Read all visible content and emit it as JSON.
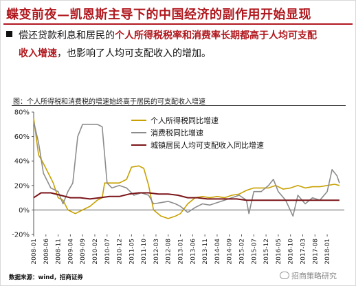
{
  "slide": {
    "title": "蝶变前夜—凯恩斯主导下的中国经济的副作用开始显现",
    "bullet_line1_plain": "偿还贷款利息和居民的",
    "bullet_line1_highlight": "个人所得税税率和消费率长期都高于人均可支配",
    "bullet_line2_highlight": "收入增速",
    "bullet_line2_plain": "，也影响了人均可支配收入的增加。",
    "chart_caption": "图：个人所得税和消费税的增速始终高于居民的可支配收入增速",
    "source": "数据来源：wind，招商证券",
    "watermark": "招商策略研究"
  },
  "colors": {
    "title": "#b0181e",
    "income_tax": "#c8a000",
    "consumption_tax": "#8c8c8c",
    "disposable_income": "#7a1418"
  },
  "chart_data": {
    "type": "line",
    "title": "图：个人所得税和消费税的增速始终高于居民的可支配收入增速",
    "xlabel": "",
    "ylabel": "",
    "ylim": [
      -20,
      80
    ],
    "yticks": [
      "80%",
      "60%",
      "40%",
      "20%",
      "0%",
      "-20%"
    ],
    "ytick_values": [
      80,
      60,
      40,
      20,
      0,
      -20
    ],
    "grid": false,
    "legend_position": "top-right",
    "x_labels": [
      "2008-01",
      "2008-06",
      "2008-11",
      "2009-04",
      "2009-09",
      "2010-02",
      "2010-07",
      "2010-12",
      "2011-05",
      "2011-10",
      "2012-03",
      "2012-08",
      "2013-01",
      "2013-06",
      "2013-11",
      "2014-04",
      "2014-09",
      "2015-02",
      "2015-07",
      "2015-12",
      "2016-05",
      "2016-10",
      "2017-03",
      "2017-08",
      "2018-01"
    ],
    "series": [
      {
        "name": "个人所得税同比增速",
        "color_key": "income_tax",
        "points": [
          [
            "2008-01",
            75
          ],
          [
            "2008-03",
            45
          ],
          [
            "2008-05",
            38
          ],
          [
            "2008-07",
            30
          ],
          [
            "2008-09",
            22
          ],
          [
            "2008-11",
            10
          ],
          [
            "2009-01",
            8
          ],
          [
            "2009-03",
            0
          ],
          [
            "2009-06",
            -3
          ],
          [
            "2009-09",
            0
          ],
          [
            "2009-12",
            3
          ],
          [
            "2010-03",
            8
          ],
          [
            "2010-05",
            10
          ],
          [
            "2010-06",
            22
          ],
          [
            "2010-09",
            22
          ],
          [
            "2010-12",
            22
          ],
          [
            "2011-03",
            25
          ],
          [
            "2011-05",
            35
          ],
          [
            "2011-08",
            36
          ],
          [
            "2011-10",
            34
          ],
          [
            "2011-12",
            20
          ],
          [
            "2012-02",
            0
          ],
          [
            "2012-05",
            -5
          ],
          [
            "2012-08",
            -7
          ],
          [
            "2012-11",
            -5
          ],
          [
            "2013-01",
            -3
          ],
          [
            "2013-04",
            5
          ],
          [
            "2013-07",
            10
          ],
          [
            "2013-10",
            11
          ],
          [
            "2014-01",
            10
          ],
          [
            "2014-04",
            11
          ],
          [
            "2014-07",
            10
          ],
          [
            "2014-10",
            12
          ],
          [
            "2015-01",
            13
          ],
          [
            "2015-04",
            16
          ],
          [
            "2015-07",
            18
          ],
          [
            "2015-10",
            18
          ],
          [
            "2016-01",
            18
          ],
          [
            "2016-04",
            20
          ],
          [
            "2016-07",
            17
          ],
          [
            "2016-10",
            18
          ],
          [
            "2017-01",
            20
          ],
          [
            "2017-04",
            18
          ],
          [
            "2017-07",
            19
          ],
          [
            "2017-10",
            19
          ],
          [
            "2018-01",
            20
          ],
          [
            "2018-04",
            21
          ],
          [
            "2018-06",
            20
          ]
        ]
      },
      {
        "name": "消费税同比增速",
        "color_key": "consumption_tax",
        "points": [
          [
            "2008-01",
            72
          ],
          [
            "2008-03",
            55
          ],
          [
            "2008-05",
            30
          ],
          [
            "2008-08",
            18
          ],
          [
            "2008-11",
            15
          ],
          [
            "2009-01",
            5
          ],
          [
            "2009-03",
            15
          ],
          [
            "2009-05",
            22
          ],
          [
            "2009-07",
            60
          ],
          [
            "2009-09",
            70
          ],
          [
            "2009-12",
            70
          ],
          [
            "2010-03",
            70
          ],
          [
            "2010-05",
            68
          ],
          [
            "2010-07",
            22
          ],
          [
            "2010-09",
            18
          ],
          [
            "2010-12",
            20
          ],
          [
            "2011-03",
            18
          ],
          [
            "2011-06",
            12
          ],
          [
            "2011-09",
            14
          ],
          [
            "2011-12",
            12
          ],
          [
            "2012-02",
            5
          ],
          [
            "2012-05",
            6
          ],
          [
            "2012-08",
            7
          ],
          [
            "2012-11",
            5
          ],
          [
            "2013-01",
            3
          ],
          [
            "2013-04",
            -2
          ],
          [
            "2013-07",
            2
          ],
          [
            "2013-10",
            5
          ],
          [
            "2014-01",
            4
          ],
          [
            "2014-04",
            6
          ],
          [
            "2014-07",
            8
          ],
          [
            "2014-10",
            10
          ],
          [
            "2015-01",
            12
          ],
          [
            "2015-04",
            8
          ],
          [
            "2015-05",
            -3
          ],
          [
            "2015-07",
            15
          ],
          [
            "2015-10",
            15
          ],
          [
            "2016-01",
            20
          ],
          [
            "2016-03",
            25
          ],
          [
            "2016-05",
            15
          ],
          [
            "2016-08",
            8
          ],
          [
            "2016-11",
            -5
          ],
          [
            "2017-01",
            12
          ],
          [
            "2017-04",
            5
          ],
          [
            "2017-07",
            10
          ],
          [
            "2017-10",
            8
          ],
          [
            "2018-01",
            15
          ],
          [
            "2018-03",
            33
          ],
          [
            "2018-05",
            28
          ],
          [
            "2018-06",
            22
          ]
        ]
      },
      {
        "name": "城镇居民人均可支配收入同比增速",
        "color_key": "disposable_income",
        "points": [
          [
            "2008-01",
            10
          ],
          [
            "2008-04",
            14
          ],
          [
            "2008-08",
            14
          ],
          [
            "2008-12",
            12
          ],
          [
            "2009-04",
            10
          ],
          [
            "2009-08",
            10
          ],
          [
            "2009-12",
            9
          ],
          [
            "2010-04",
            10
          ],
          [
            "2010-08",
            11
          ],
          [
            "2010-12",
            11
          ],
          [
            "2011-04",
            13
          ],
          [
            "2011-08",
            14
          ],
          [
            "2011-12",
            14
          ],
          [
            "2012-04",
            13
          ],
          [
            "2012-08",
            13
          ],
          [
            "2012-12",
            12
          ],
          [
            "2013-04",
            10
          ],
          [
            "2013-08",
            10
          ],
          [
            "2013-12",
            9
          ],
          [
            "2014-04",
            9
          ],
          [
            "2014-08",
            9
          ],
          [
            "2014-12",
            9
          ],
          [
            "2015-04",
            8
          ],
          [
            "2015-08",
            8
          ],
          [
            "2015-12",
            8
          ],
          [
            "2016-04",
            8
          ],
          [
            "2016-08",
            8
          ],
          [
            "2016-12",
            8
          ],
          [
            "2017-04",
            8
          ],
          [
            "2017-08",
            8
          ],
          [
            "2017-12",
            8
          ],
          [
            "2018-04",
            8
          ],
          [
            "2018-06",
            8
          ]
        ]
      }
    ]
  }
}
